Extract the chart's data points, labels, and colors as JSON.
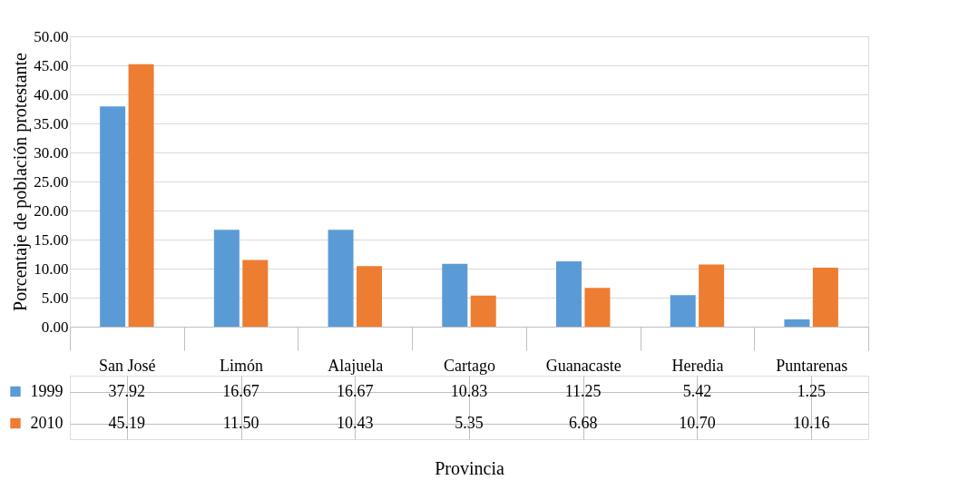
{
  "chart_data": {
    "type": "bar",
    "xlabel": "Provincia",
    "ylabel": "Porcentaje de población protestante",
    "categories": [
      "San José",
      "Limón",
      "Alajuela",
      "Cartago",
      "Guanacaste",
      "Heredia",
      "Puntarenas"
    ],
    "series": [
      {
        "name": "1999",
        "color": "#5b9bd5",
        "values": [
          37.92,
          16.67,
          16.67,
          10.83,
          11.25,
          5.42,
          1.25
        ],
        "value_labels": [
          "37.92",
          "16.67",
          "16.67",
          "10.83",
          "11.25",
          "5.42",
          "1.25"
        ]
      },
      {
        "name": "2010",
        "color": "#ed7d31",
        "values": [
          45.19,
          11.5,
          10.43,
          5.35,
          6.68,
          10.7,
          10.16
        ],
        "value_labels": [
          "45.19",
          "11.50",
          "10.43",
          "5.35",
          "6.68",
          "10.70",
          "10.16"
        ]
      }
    ],
    "ylim": [
      0,
      50
    ],
    "yticks": [
      {
        "value": 0,
        "label": "0.00"
      },
      {
        "value": 5,
        "label": "5.00"
      },
      {
        "value": 10,
        "label": "10.00"
      },
      {
        "value": 15,
        "label": "15.00"
      },
      {
        "value": 20,
        "label": "20.00"
      },
      {
        "value": 25,
        "label": "25.00"
      },
      {
        "value": 30,
        "label": "30.00"
      },
      {
        "value": 35,
        "label": "35.00"
      },
      {
        "value": 40,
        "label": "40.00"
      },
      {
        "value": 45,
        "label": "45.00"
      },
      {
        "value": 50,
        "label": "50.00"
      }
    ],
    "grid": "y",
    "legend": "bottom"
  }
}
